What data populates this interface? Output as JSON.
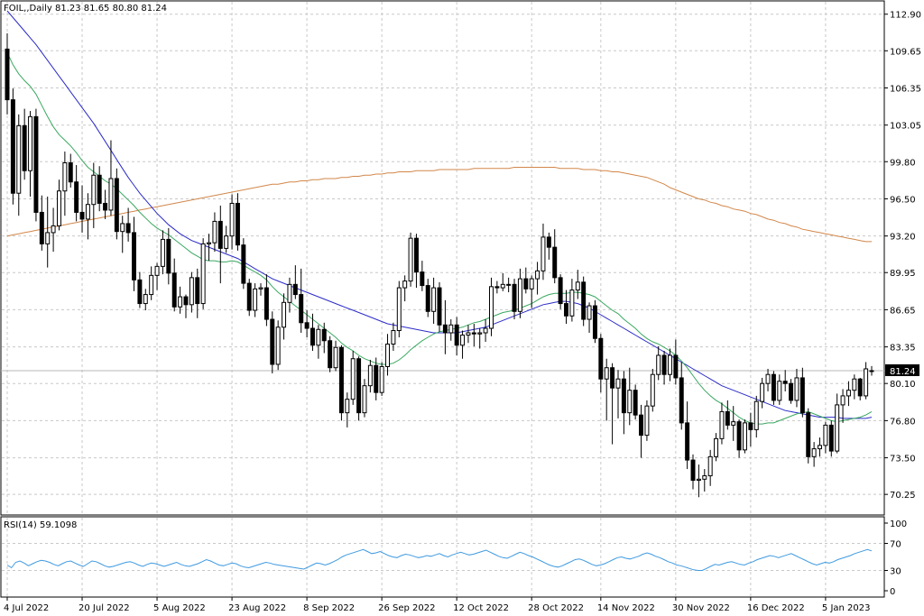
{
  "chart_data": {
    "type": "candlestick",
    "title": "FOIL,,Daily  81.23 81.65 80.80 81.24",
    "price_axis": {
      "ticks": [
        "112.90",
        "109.65",
        "106.35",
        "103.05",
        "99.80",
        "96.50",
        "93.20",
        "89.95",
        "86.65",
        "83.35",
        "80.10",
        "76.80",
        "73.50",
        "70.25"
      ],
      "ylim": [
        68.5,
        114.0
      ]
    },
    "current_price": "81.24",
    "current_price_value": 81.24,
    "x_labels": [
      "4 Jul 2022",
      "20 Jul 2022",
      "5 Aug 2022",
      "23 Aug 2022",
      "8 Sep 2022",
      "26 Sep 2022",
      "12 Oct 2022",
      "28 Oct 2022",
      "14 Nov 2022",
      "30 Nov 2022",
      "16 Dec 2022",
      "5 Jan 2023"
    ],
    "candles": [
      [
        109.8,
        111.2,
        104.0,
        105.3
      ],
      [
        105.3,
        106.3,
        96.0,
        97.0
      ],
      [
        97.0,
        104.0,
        95.0,
        103.0
      ],
      [
        103.0,
        104.5,
        98.2,
        99.0
      ],
      [
        99.0,
        104.3,
        96.7,
        103.8
      ],
      [
        103.8,
        104.5,
        94.5,
        95.3
      ],
      [
        95.3,
        96.8,
        91.9,
        92.5
      ],
      [
        92.5,
        96.7,
        90.4,
        93.5
      ],
      [
        93.5,
        95.7,
        91.8,
        94.1
      ],
      [
        94.1,
        98.2,
        93.7,
        97.2
      ],
      [
        97.2,
        100.7,
        95.0,
        99.7
      ],
      [
        99.7,
        100.5,
        97.5,
        98.0
      ],
      [
        98.0,
        99.5,
        94.5,
        95.3
      ],
      [
        95.3,
        97.7,
        93.5,
        94.7
      ],
      [
        94.7,
        97.0,
        92.9,
        96.0
      ],
      [
        96.0,
        99.7,
        93.9,
        98.6
      ],
      [
        98.6,
        99.4,
        95.4,
        96.1
      ],
      [
        96.1,
        97.3,
        94.7,
        95.5
      ],
      [
        95.5,
        101.7,
        95.0,
        98.3
      ],
      [
        98.3,
        99.2,
        92.9,
        93.6
      ],
      [
        93.6,
        95.0,
        91.7,
        94.3
      ],
      [
        94.3,
        95.7,
        92.7,
        93.5
      ],
      [
        93.5,
        94.9,
        88.3,
        89.3
      ],
      [
        89.3,
        90.0,
        86.8,
        87.2
      ],
      [
        87.2,
        88.5,
        86.6,
        88.0
      ],
      [
        88.0,
        90.5,
        87.5,
        89.7
      ],
      [
        89.7,
        90.8,
        88.4,
        90.5
      ],
      [
        90.5,
        93.7,
        89.8,
        92.9
      ],
      [
        92.9,
        93.9,
        88.9,
        89.9
      ],
      [
        89.9,
        91.2,
        86.5,
        86.9
      ],
      [
        86.9,
        88.7,
        86.3,
        87.8
      ],
      [
        87.8,
        88.0,
        85.9,
        87.1
      ],
      [
        87.1,
        90.0,
        86.4,
        89.5
      ],
      [
        89.5,
        90.3,
        85.9,
        87.2
      ],
      [
        87.2,
        93.0,
        86.7,
        92.5
      ],
      [
        92.5,
        93.4,
        91.0,
        92.6
      ],
      [
        92.6,
        95.3,
        91.8,
        94.5
      ],
      [
        94.5,
        95.9,
        89.0,
        92.1
      ],
      [
        92.1,
        94.1,
        91.7,
        93.2
      ],
      [
        93.2,
        96.9,
        92.0,
        96.1
      ],
      [
        96.1,
        97.0,
        91.9,
        92.4
      ],
      [
        92.4,
        93.0,
        88.5,
        89.0
      ],
      [
        89.0,
        89.4,
        86.1,
        86.6
      ],
      [
        86.6,
        89.0,
        86.0,
        88.5
      ],
      [
        88.5,
        89.0,
        87.9,
        88.6
      ],
      [
        88.6,
        89.8,
        85.2,
        85.8
      ],
      [
        85.8,
        86.5,
        81.0,
        81.8
      ],
      [
        81.8,
        85.7,
        81.3,
        85.1
      ],
      [
        85.1,
        88.1,
        84.0,
        87.3
      ],
      [
        87.3,
        89.5,
        86.4,
        88.9
      ],
      [
        88.9,
        90.6,
        87.6,
        88.0
      ],
      [
        88.0,
        90.3,
        84.6,
        85.5
      ],
      [
        85.5,
        86.6,
        84.2,
        85.0
      ],
      [
        85.0,
        86.3,
        83.0,
        83.5
      ],
      [
        83.5,
        85.3,
        82.3,
        84.9
      ],
      [
        84.9,
        85.5,
        82.8,
        83.9
      ],
      [
        83.9,
        84.3,
        81.1,
        81.5
      ],
      [
        81.5,
        83.9,
        81.2,
        83.3
      ],
      [
        83.3,
        83.5,
        76.8,
        77.5
      ],
      [
        77.5,
        79.3,
        76.2,
        78.7
      ],
      [
        78.7,
        83.0,
        78.2,
        82.3
      ],
      [
        82.3,
        82.5,
        76.8,
        77.5
      ],
      [
        77.5,
        80.5,
        77.1,
        79.9
      ],
      [
        79.9,
        82.2,
        79.3,
        81.7
      ],
      [
        81.7,
        82.4,
        78.6,
        79.3
      ],
      [
        79.3,
        82.0,
        79.0,
        81.6
      ],
      [
        81.6,
        84.5,
        80.8,
        83.6
      ],
      [
        83.6,
        85.5,
        83.0,
        84.8
      ],
      [
        84.8,
        89.2,
        84.2,
        88.6
      ],
      [
        88.6,
        89.7,
        87.4,
        89.2
      ],
      [
        89.2,
        93.5,
        88.7,
        93.0
      ],
      [
        93.0,
        93.4,
        88.6,
        90.0
      ],
      [
        90.0,
        91.0,
        88.3,
        88.8
      ],
      [
        88.8,
        89.4,
        86.0,
        86.5
      ],
      [
        86.5,
        89.5,
        85.4,
        88.6
      ],
      [
        88.6,
        89.1,
        84.7,
        85.3
      ],
      [
        85.3,
        87.5,
        82.7,
        84.6
      ],
      [
        84.6,
        85.8,
        83.9,
        85.3
      ],
      [
        85.3,
        86.0,
        82.6,
        83.5
      ],
      [
        83.5,
        84.8,
        82.3,
        84.4
      ],
      [
        84.4,
        85.3,
        83.7,
        84.6
      ],
      [
        84.6,
        85.4,
        83.4,
        84.5
      ],
      [
        84.5,
        85.0,
        83.2,
        84.6
      ],
      [
        84.6,
        85.8,
        83.8,
        85.0
      ],
      [
        85.0,
        89.5,
        84.3,
        88.7
      ],
      [
        88.7,
        89.2,
        88.1,
        88.6
      ],
      [
        88.6,
        89.9,
        88.3,
        88.9
      ],
      [
        88.9,
        89.5,
        88.2,
        88.9
      ],
      [
        88.9,
        89.4,
        85.8,
        86.5
      ],
      [
        86.5,
        90.3,
        85.9,
        89.4
      ],
      [
        89.4,
        90.4,
        88.1,
        88.5
      ],
      [
        88.5,
        89.7,
        86.8,
        89.4
      ],
      [
        89.4,
        90.9,
        88.0,
        90.1
      ],
      [
        90.1,
        94.3,
        89.3,
        93.1
      ],
      [
        93.1,
        93.5,
        91.1,
        92.2
      ],
      [
        92.2,
        93.8,
        89.0,
        89.5
      ],
      [
        89.5,
        89.8,
        86.7,
        87.2
      ],
      [
        87.2,
        88.4,
        85.4,
        86.1
      ],
      [
        86.1,
        89.4,
        85.6,
        88.4
      ],
      [
        88.4,
        90.2,
        87.6,
        89.1
      ],
      [
        89.1,
        89.6,
        85.2,
        85.8
      ],
      [
        85.8,
        87.3,
        84.6,
        87.0
      ],
      [
        87.0,
        87.5,
        83.7,
        84.1
      ],
      [
        84.1,
        84.5,
        79.3,
        80.5
      ],
      [
        80.5,
        82.3,
        76.8,
        81.5
      ],
      [
        81.5,
        81.9,
        74.7,
        79.7
      ],
      [
        79.7,
        81.3,
        77.0,
        80.5
      ],
      [
        80.5,
        81.2,
        75.6,
        77.5
      ],
      [
        77.5,
        81.5,
        76.4,
        79.5
      ],
      [
        79.5,
        80.0,
        76.9,
        77.3
      ],
      [
        77.3,
        78.2,
        73.5,
        75.5
      ],
      [
        75.5,
        78.6,
        75.0,
        78.1
      ],
      [
        78.1,
        81.4,
        77.6,
        80.9
      ],
      [
        80.9,
        83.4,
        80.4,
        82.6
      ],
      [
        82.6,
        83.0,
        80.0,
        80.9
      ],
      [
        80.9,
        83.2,
        80.3,
        82.6
      ],
      [
        82.6,
        84.0,
        80.0,
        80.6
      ],
      [
        80.6,
        82.0,
        76.0,
        76.6
      ],
      [
        76.6,
        78.5,
        72.5,
        73.3
      ],
      [
        73.3,
        73.8,
        70.7,
        71.5
      ],
      [
        71.5,
        72.9,
        70.0,
        71.6
      ],
      [
        71.6,
        72.5,
        70.5,
        71.9
      ],
      [
        71.9,
        74.2,
        71.0,
        73.6
      ],
      [
        73.6,
        75.7,
        73.2,
        75.2
      ],
      [
        75.2,
        78.4,
        74.7,
        77.6
      ],
      [
        77.6,
        78.6,
        76.0,
        76.4
      ],
      [
        76.4,
        78.1,
        75.0,
        76.7
      ],
      [
        76.7,
        76.9,
        73.5,
        74.2
      ],
      [
        74.2,
        76.9,
        73.9,
        76.6
      ],
      [
        76.6,
        77.5,
        74.5,
        76.0
      ],
      [
        76.0,
        79.0,
        75.3,
        78.5
      ],
      [
        78.5,
        80.6,
        77.9,
        80.1
      ],
      [
        80.1,
        81.4,
        79.4,
        80.9
      ],
      [
        80.9,
        81.2,
        78.2,
        78.6
      ],
      [
        78.6,
        80.9,
        78.2,
        80.3
      ],
      [
        80.3,
        81.3,
        79.4,
        80.1
      ],
      [
        80.1,
        80.5,
        78.3,
        78.6
      ],
      [
        78.6,
        81.4,
        78.0,
        80.6
      ],
      [
        80.6,
        81.5,
        77.1,
        77.5
      ],
      [
        77.5,
        77.9,
        73.0,
        73.6
      ],
      [
        73.6,
        74.9,
        72.7,
        74.3
      ],
      [
        74.3,
        75.3,
        73.6,
        74.6
      ],
      [
        74.6,
        76.7,
        73.9,
        76.4
      ],
      [
        76.4,
        76.8,
        73.6,
        74.1
      ],
      [
        74.1,
        79.2,
        73.9,
        78.2
      ],
      [
        78.2,
        79.6,
        76.6,
        79.0
      ],
      [
        79.0,
        80.3,
        78.1,
        79.5
      ],
      [
        79.5,
        80.9,
        78.7,
        80.5
      ],
      [
        80.5,
        80.6,
        78.6,
        79.0
      ],
      [
        79.0,
        82.0,
        78.7,
        81.4
      ],
      [
        81.23,
        81.65,
        80.8,
        81.24
      ]
    ],
    "ma_fast": [
      109.5,
      108.4,
      107.6,
      107.0,
      106.5,
      105.8,
      104.8,
      103.8,
      102.9,
      102.2,
      101.7,
      101.2,
      100.6,
      99.9,
      99.3,
      98.9,
      98.5,
      98.1,
      97.8,
      97.4,
      96.9,
      96.4,
      95.9,
      95.3,
      94.8,
      94.3,
      93.9,
      93.6,
      93.3,
      92.9,
      92.5,
      92.1,
      91.7,
      91.4,
      91.1,
      91.0,
      91.0,
      90.9,
      90.9,
      91.0,
      90.9,
      90.6,
      90.3,
      90.0,
      89.7,
      89.3,
      88.7,
      88.2,
      87.8,
      87.4,
      87.0,
      86.6,
      86.2,
      85.8,
      85.4,
      85.0,
      84.6,
      84.2,
      83.7,
      83.3,
      83.0,
      82.6,
      82.3,
      82.1,
      81.9,
      81.8,
      81.8,
      81.9,
      82.2,
      82.6,
      83.1,
      83.5,
      83.9,
      84.2,
      84.5,
      84.7,
      84.8,
      84.9,
      85.0,
      85.1,
      85.3,
      85.5,
      85.6,
      85.8,
      86.0,
      86.2,
      86.4,
      86.5,
      86.6,
      86.8,
      87.0,
      87.2,
      87.5,
      87.8,
      88.0,
      88.1,
      88.1,
      88.1,
      88.2,
      88.2,
      88.1,
      88.0,
      87.8,
      87.4,
      87.0,
      86.6,
      86.3,
      85.8,
      85.4,
      85.0,
      84.5,
      84.1,
      83.8,
      83.6,
      83.3,
      83.0,
      82.6,
      82.1,
      81.5,
      80.8,
      80.1,
      79.5,
      79.0,
      78.6,
      78.3,
      77.9,
      77.5,
      77.1,
      76.8,
      76.6,
      76.5,
      76.5,
      76.6,
      76.6,
      76.8,
      77.0,
      77.2,
      77.4,
      77.5,
      77.6,
      77.4,
      77.2,
      77.0,
      76.8,
      76.7,
      76.8,
      76.9,
      77.0,
      77.1,
      77.3,
      77.6
    ],
    "ma_mid": [
      113.2,
      112.6,
      112.0,
      111.4,
      110.8,
      110.2,
      109.5,
      108.8,
      108.1,
      107.4,
      106.7,
      106.0,
      105.3,
      104.6,
      103.9,
      103.2,
      102.4,
      101.6,
      100.8,
      100.0,
      99.2,
      98.4,
      97.7,
      97.0,
      96.4,
      95.8,
      95.2,
      94.7,
      94.2,
      93.8,
      93.4,
      93.1,
      92.8,
      92.6,
      92.4,
      92.2,
      92.0,
      91.8,
      91.6,
      91.4,
      91.2,
      90.9,
      90.6,
      90.3,
      90.0,
      89.7,
      89.4,
      89.2,
      89.0,
      88.8,
      88.6,
      88.4,
      88.2,
      88.0,
      87.8,
      87.6,
      87.4,
      87.2,
      87.0,
      86.8,
      86.6,
      86.4,
      86.2,
      86.0,
      85.8,
      85.6,
      85.4,
      85.3,
      85.2,
      85.1,
      85.0,
      84.9,
      84.8,
      84.7,
      84.6,
      84.6,
      84.6,
      84.6,
      84.6,
      84.7,
      84.8,
      84.9,
      85.0,
      85.1,
      85.3,
      85.5,
      85.7,
      85.9,
      86.1,
      86.3,
      86.5,
      86.7,
      86.9,
      87.1,
      87.2,
      87.3,
      87.4,
      87.4,
      87.3,
      87.2,
      87.0,
      86.8,
      86.5,
      86.2,
      85.9,
      85.6,
      85.3,
      85.0,
      84.7,
      84.4,
      84.1,
      83.8,
      83.5,
      83.2,
      82.9,
      82.6,
      82.3,
      82.0,
      81.7,
      81.4,
      81.1,
      80.8,
      80.5,
      80.2,
      79.9,
      79.7,
      79.5,
      79.3,
      79.1,
      78.9,
      78.7,
      78.5,
      78.3,
      78.1,
      77.9,
      77.7,
      77.6,
      77.5,
      77.4,
      77.3,
      77.2,
      77.1,
      77.1,
      77.1,
      77.1,
      77.0,
      77.0,
      77.0,
      77.0,
      77.0,
      77.1
    ],
    "ma_slow": [
      93.2,
      93.3,
      93.4,
      93.5,
      93.6,
      93.7,
      93.8,
      93.9,
      94.0,
      94.1,
      94.2,
      94.3,
      94.4,
      94.5,
      94.6,
      94.7,
      94.8,
      94.9,
      95.0,
      95.1,
      95.2,
      95.3,
      95.4,
      95.5,
      95.6,
      95.7,
      95.8,
      95.9,
      96.0,
      96.1,
      96.2,
      96.3,
      96.4,
      96.5,
      96.6,
      96.7,
      96.8,
      96.9,
      97.0,
      97.1,
      97.2,
      97.3,
      97.4,
      97.5,
      97.6,
      97.7,
      97.8,
      97.8,
      97.9,
      98.0,
      98.0,
      98.1,
      98.1,
      98.2,
      98.2,
      98.3,
      98.3,
      98.3,
      98.4,
      98.4,
      98.5,
      98.5,
      98.6,
      98.6,
      98.7,
      98.7,
      98.8,
      98.8,
      98.9,
      98.9,
      98.9,
      99.0,
      99.0,
      99.0,
      99.0,
      99.1,
      99.1,
      99.1,
      99.1,
      99.1,
      99.1,
      99.2,
      99.2,
      99.2,
      99.2,
      99.2,
      99.2,
      99.2,
      99.3,
      99.3,
      99.3,
      99.3,
      99.3,
      99.3,
      99.3,
      99.3,
      99.2,
      99.2,
      99.2,
      99.2,
      99.1,
      99.1,
      99.1,
      99.0,
      99.0,
      98.9,
      98.9,
      98.8,
      98.7,
      98.6,
      98.5,
      98.4,
      98.2,
      98.0,
      97.8,
      97.5,
      97.3,
      97.1,
      96.9,
      96.7,
      96.5,
      96.4,
      96.2,
      96.1,
      95.9,
      95.8,
      95.6,
      95.5,
      95.4,
      95.2,
      95.1,
      94.9,
      94.7,
      94.6,
      94.4,
      94.3,
      94.1,
      94.0,
      93.8,
      93.7,
      93.6,
      93.5,
      93.4,
      93.3,
      93.2,
      93.1,
      93.0,
      92.9,
      92.8,
      92.7,
      92.7
    ],
    "rsi": {
      "label": "RSI(14) 59.1098",
      "ticks": [
        "100",
        "70",
        "30",
        "0"
      ],
      "ylim": [
        0,
        100
      ],
      "values": [
        38,
        34,
        42,
        44,
        41,
        37,
        40,
        43,
        45,
        44,
        42,
        39,
        37,
        40,
        43,
        44,
        41,
        38,
        36,
        40,
        44,
        43,
        40,
        37,
        35,
        36,
        38,
        40,
        42,
        43,
        41,
        38,
        36,
        39,
        41,
        40,
        38,
        36,
        38,
        40,
        42,
        39,
        37,
        36,
        38,
        40,
        43,
        46,
        44,
        41,
        38,
        37,
        39,
        41,
        40,
        37,
        35,
        34,
        36,
        38,
        40,
        42,
        41,
        39,
        38,
        37,
        36,
        35,
        34,
        33,
        32,
        35,
        38,
        41,
        40,
        38,
        40,
        43,
        46,
        50,
        53,
        55,
        57,
        59,
        61,
        58,
        55,
        56,
        58,
        55,
        52,
        50,
        49,
        52,
        54,
        53,
        51,
        49,
        50,
        52,
        51,
        53,
        55,
        52,
        50,
        53,
        55,
        57,
        55,
        53,
        54,
        56,
        58,
        60,
        57,
        54,
        51,
        49,
        48,
        51,
        54,
        57,
        55,
        52,
        50,
        47,
        44,
        41,
        38,
        36,
        35,
        37,
        40,
        43,
        46,
        47,
        45,
        42,
        39,
        37,
        38,
        40,
        43,
        46,
        49,
        50,
        48,
        47,
        49,
        51,
        54,
        56,
        54,
        51,
        49,
        46,
        43,
        41,
        38,
        37,
        35,
        33,
        31,
        30,
        30,
        33,
        36,
        39,
        38,
        40,
        42,
        43,
        41,
        39,
        38,
        41,
        43,
        46,
        48,
        50,
        52,
        51,
        49,
        51,
        53,
        55,
        52,
        49,
        46,
        43,
        40,
        38,
        40,
        42,
        41,
        43,
        46,
        48,
        50,
        52,
        55,
        57,
        59,
        61,
        59
      ]
    }
  }
}
